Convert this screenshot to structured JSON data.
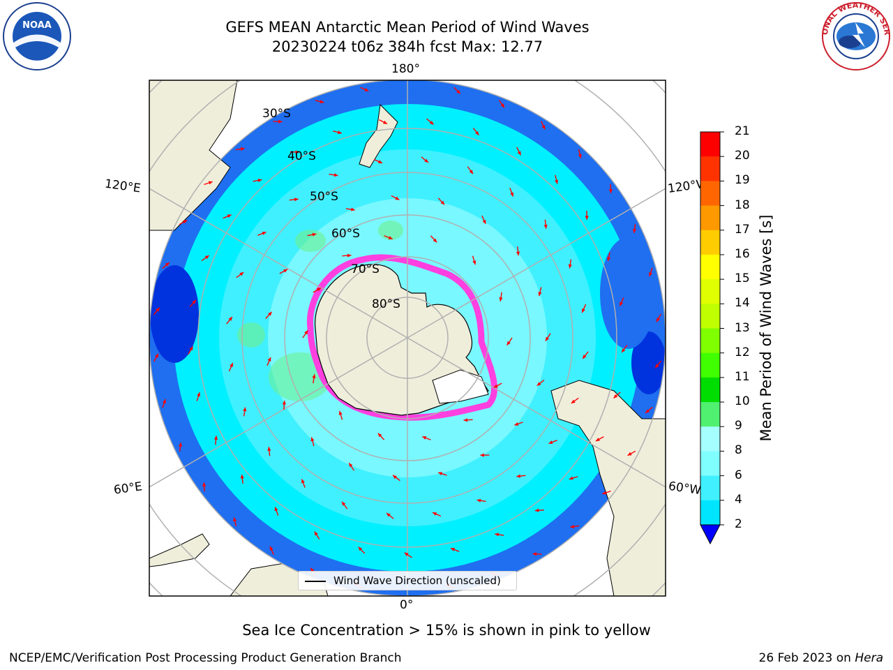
{
  "title": {
    "line1": "GEFS MEAN Antarctic Mean Period of Wind Waves",
    "line2": "20230224 t06z 384h fcst   Max: 12.77"
  },
  "longitude_labels": {
    "top": "180°",
    "bottom": "0°",
    "upper_left": "120°E",
    "upper_right": "120°W",
    "lower_left": "60°E",
    "lower_right": "60°W"
  },
  "latitude_labels": [
    "30°S",
    "40°S",
    "50°S",
    "60°S",
    "70°S",
    "80°S"
  ],
  "colorbar": {
    "label": "Mean Period of Wind Waves [s]",
    "ticks": [
      "21",
      "20",
      "19",
      "18",
      "17",
      "16",
      "15",
      "14",
      "13",
      "12",
      "11",
      "10",
      "9",
      "8",
      "6",
      "4",
      "2"
    ],
    "colors": [
      "#0000ff",
      "#0066ff",
      "#00e5ff",
      "#40f0ff",
      "#80ffff",
      "#a6ffff",
      "#50f070",
      "#00dd00",
      "#40ff00",
      "#80ff00",
      "#c0ff00",
      "#e0ff00",
      "#ffff00",
      "#ffcc00",
      "#ff9900",
      "#ff6600",
      "#ff3300",
      "#ff0000"
    ]
  },
  "legend": {
    "label": "Wind Wave Direction (unscaled)"
  },
  "caption": "Sea Ice Concentration > 15% is shown in pink to yellow",
  "footer": {
    "left": "NCEP/EMC/Verification Post Processing Product Generation Branch",
    "date": "26 Feb 2023 on",
    "host": "Hera"
  },
  "logos": {
    "left": "NOAA",
    "right": "NATIONAL WEATHER SERVICE"
  },
  "colors": {
    "land": "#efeedb",
    "ocean_deep": "#1f6ff0",
    "ocean_mid": "#00f0ff",
    "ocean_light": "#a8ffff",
    "arrow": "#ff0000",
    "grid": "#b0b0b0"
  }
}
